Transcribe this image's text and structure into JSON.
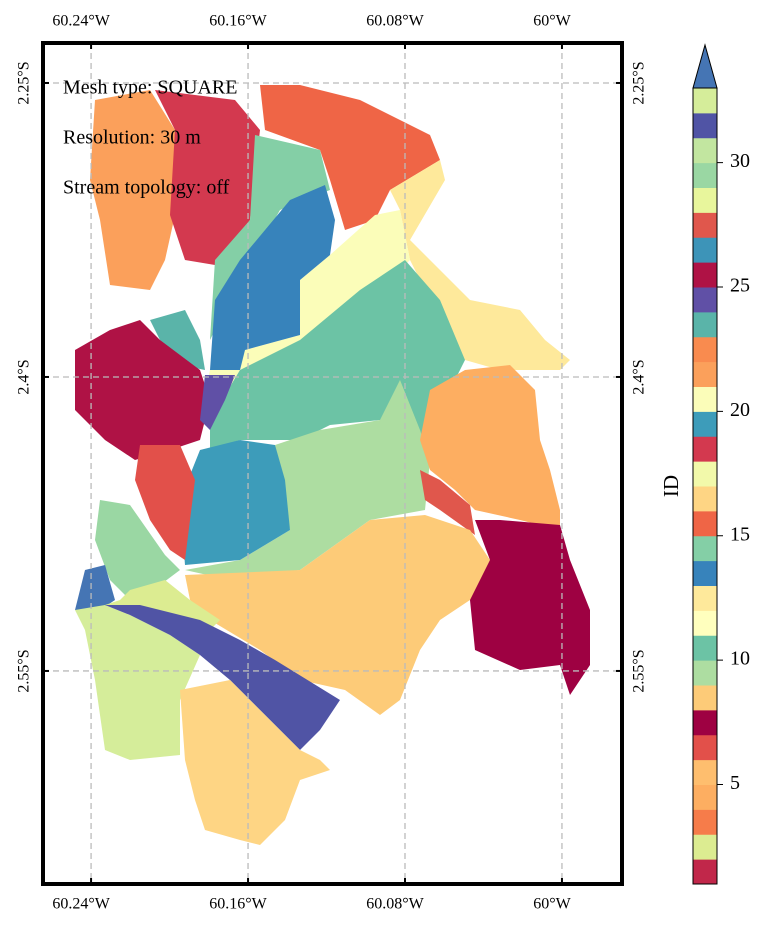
{
  "chart_data": {
    "type": "map",
    "annotations": [
      "Mesh type: SQUARE",
      "Resolution: 30 m",
      "Stream topology: off"
    ],
    "xlim": [
      -60.2645,
      -59.9694
    ],
    "ylim": [
      -2.6587,
      -2.2296
    ],
    "xticks": [
      {
        "value": -60.24,
        "label": "60.24°W"
      },
      {
        "value": -60.16,
        "label": "60.16°W"
      },
      {
        "value": -60.08,
        "label": "60.08°W"
      },
      {
        "value": -60,
        "label": "60°W"
      }
    ],
    "yticks": [
      {
        "value": -2.25,
        "label": "2.25°S"
      },
      {
        "value": -2.4,
        "label": "2.4°S"
      },
      {
        "value": -2.55,
        "label": "2.55°S"
      }
    ],
    "grid": true,
    "colorbar": {
      "label": "ID",
      "lim": [
        1,
        33
      ],
      "ticks": [
        5,
        10,
        15,
        20,
        25,
        30
      ],
      "extend_color": "#4575b4",
      "colors": [
        "#c1274a",
        "#dcec91",
        "#f67c4a",
        "#fdae61",
        "#febe6e",
        "#e2504a",
        "#9e0142",
        "#fdcb78",
        "#addda1",
        "#6cc3a5",
        "#ffffbe",
        "#fee99b",
        "#3783bb",
        "#84cfa6",
        "#ef6546",
        "#fed584",
        "#f2f9aa",
        "#d3394f",
        "#3d9cba",
        "#fbfdb9",
        "#fba05b",
        "#f98b4f",
        "#5ab4a9",
        "#6050a6",
        "#af1245",
        "#3d94b8",
        "#e0574c",
        "#e8f69c",
        "#9ad7a3",
        "#c2e6a0",
        "#5054a5",
        "#d5ed9a"
      ]
    }
  }
}
